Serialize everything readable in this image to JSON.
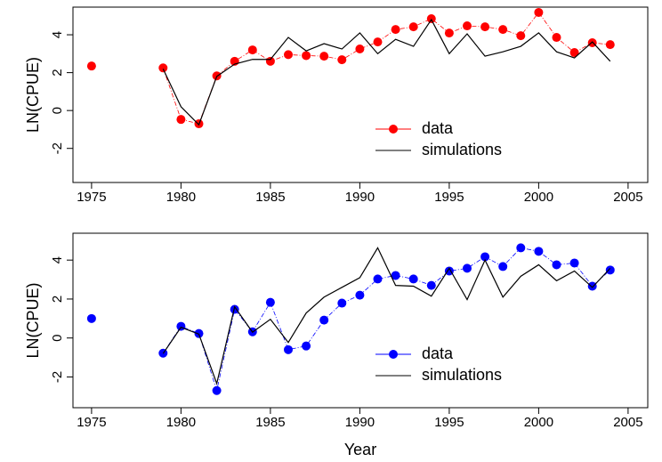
{
  "chart_data": [
    {
      "type": "line",
      "ylabel": "LN(CPUE)",
      "x": [
        1975,
        1976,
        1977,
        1978,
        1979,
        1980,
        1981,
        1982,
        1983,
        1984,
        1985,
        1986,
        1987,
        1988,
        1989,
        1990,
        1991,
        1992,
        1993,
        1994,
        1995,
        1996,
        1997,
        1998,
        1999,
        2000,
        2001,
        2002,
        2003,
        2004
      ],
      "series": [
        {
          "name": "data",
          "color": "#ff0000",
          "marker": true,
          "values": [
            2.35,
            null,
            null,
            null,
            2.25,
            -0.47,
            -0.7,
            1.83,
            2.6,
            3.2,
            2.6,
            2.95,
            2.9,
            2.87,
            2.68,
            3.25,
            3.62,
            4.28,
            4.42,
            4.85,
            4.09,
            4.47,
            4.42,
            4.28,
            3.95,
            5.18,
            3.86,
            3.06,
            3.58,
            3.48
          ]
        },
        {
          "name": "simulations",
          "color": "#000000",
          "marker": false,
          "values": [
            null,
            null,
            null,
            null,
            2.2,
            0.2,
            -0.75,
            1.8,
            2.45,
            2.7,
            2.7,
            3.86,
            3.15,
            3.53,
            3.25,
            4.1,
            3.0,
            3.76,
            3.39,
            4.8,
            3.0,
            4.05,
            2.87,
            3.1,
            3.39,
            4.1,
            3.1,
            2.78,
            3.62,
            2.6
          ]
        }
      ],
      "xlim": [
        1973.96,
        2006.1
      ],
      "xticks": [
        1975,
        1980,
        1985,
        1990,
        1995,
        2000,
        2005
      ],
      "ylim": [
        -3.8,
        5.46
      ],
      "yticks": [
        -2,
        0,
        2,
        4
      ]
    },
    {
      "type": "line",
      "ylabel": "LN(CPUE)",
      "xlabel": "Year",
      "x": [
        1975,
        1976,
        1977,
        1978,
        1979,
        1980,
        1981,
        1982,
        1983,
        1984,
        1985,
        1986,
        1987,
        1988,
        1989,
        1990,
        1991,
        1992,
        1993,
        1994,
        1995,
        1996,
        1997,
        1998,
        1999,
        2000,
        2001,
        2002,
        2003,
        2004
      ],
      "series": [
        {
          "name": "data",
          "color": "#0000ff",
          "marker": true,
          "values": [
            1.0,
            null,
            null,
            null,
            -0.78,
            0.6,
            0.23,
            -2.7,
            1.47,
            0.32,
            1.83,
            -0.6,
            -0.41,
            0.92,
            1.79,
            2.2,
            3.03,
            3.21,
            3.03,
            2.7,
            3.44,
            3.58,
            4.17,
            3.67,
            4.63,
            4.45,
            3.76,
            3.85,
            2.66,
            3.49
          ]
        },
        {
          "name": "simulations",
          "color": "#000000",
          "marker": false,
          "values": [
            null,
            null,
            null,
            null,
            -0.8,
            0.55,
            0.2,
            -2.34,
            1.6,
            0.3,
            0.96,
            -0.23,
            1.28,
            2.1,
            2.6,
            3.1,
            4.63,
            2.7,
            2.66,
            2.15,
            3.58,
            1.97,
            4.0,
            2.1,
            3.17,
            3.76,
            2.94,
            3.44,
            2.6,
            3.58
          ]
        }
      ],
      "xlim": [
        1973.96,
        2006.1
      ],
      "xticks": [
        1975,
        1980,
        1985,
        1990,
        1995,
        2000,
        2005
      ],
      "ylim": [
        -3.58,
        5.38
      ],
      "yticks": [
        -2,
        0,
        2,
        4
      ]
    }
  ]
}
